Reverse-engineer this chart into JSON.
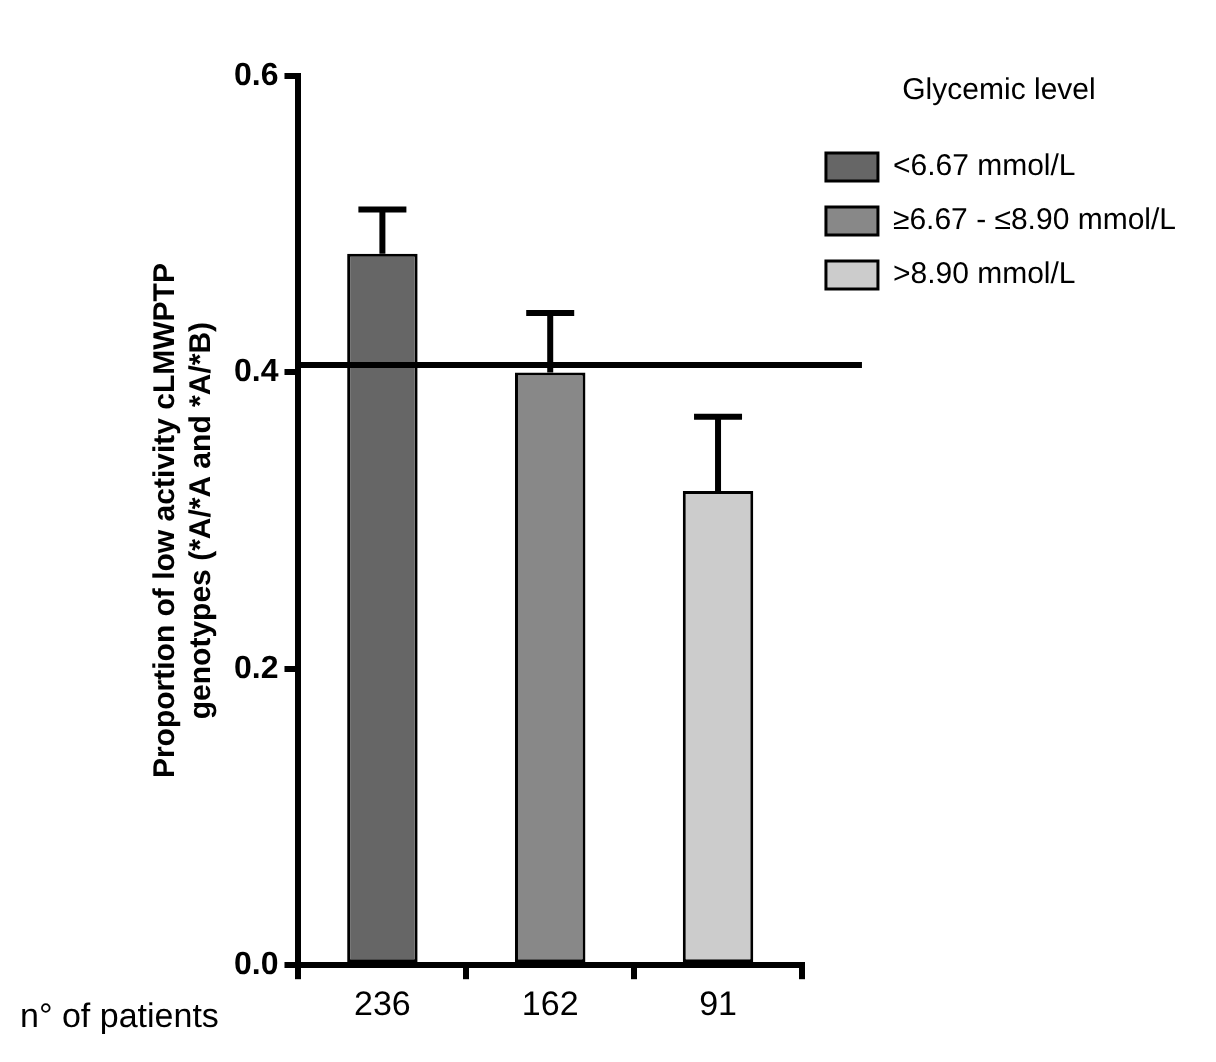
{
  "chart_data": {
    "type": "bar",
    "ylabel": "Proportion of low activity cLMWPTP genotypes (*A/*A and *A/*B)",
    "legend_title": "Glycemic level",
    "categories": [
      "236",
      "162",
      "91"
    ],
    "series": [
      {
        "name": "<6.67 mmol/L",
        "color": "#666666",
        "values": [
          0.48,
          null,
          null
        ],
        "errors": [
          [
            0.48,
            0.51
          ],
          null,
          null
        ]
      },
      {
        "name": "≥6.67 - ≤8.90 mmol/L",
        "color": "#888888",
        "values": [
          null,
          0.4,
          null
        ],
        "errors": [
          null,
          [
            0.4,
            0.44
          ],
          null
        ]
      },
      {
        "name": ">8.90 mmol/L",
        "color": "#cccccc",
        "values": [
          null,
          null,
          0.32
        ],
        "errors": [
          null,
          null,
          [
            0.32,
            0.37
          ]
        ]
      }
    ],
    "ylim": [
      0,
      0.6
    ],
    "yticks": [
      {
        "value": 0,
        "label": "0.0"
      },
      {
        "value": 0.2,
        "label": "0.2"
      },
      {
        "value": 0.4,
        "label": "0.4"
      },
      {
        "value": 0.6,
        "label": "0.6"
      }
    ],
    "ref_lines": [
      {
        "axis": "y",
        "value": 0.405
      }
    ],
    "annotations": [
      "n° of patients"
    ],
    "legend": "top right",
    "grid": false
  }
}
